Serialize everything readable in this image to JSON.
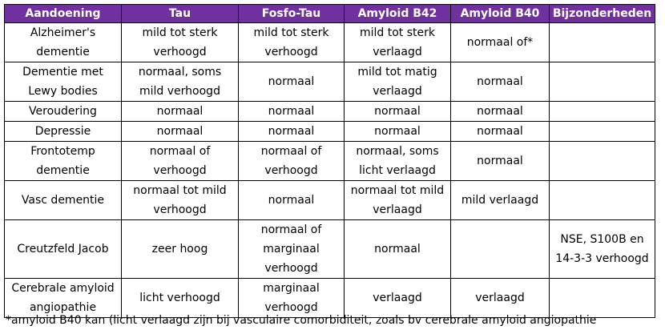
{
  "header": [
    "Aandoening",
    "Tau",
    "Fosfo-Tau",
    "Amyloid B42",
    "Amyloid B40",
    "Bijzonderheden"
  ],
  "rows": [
    [
      [
        "Alzheimer's",
        "dementie"
      ],
      [
        "mild tot sterk",
        "verhoogd"
      ],
      [
        "mild tot sterk",
        "verhoogd"
      ],
      [
        "mild tot sterk",
        "verlaagd"
      ],
      [
        "normaal of*"
      ],
      []
    ],
    [
      [
        "Dementie met",
        "Lewy bodies"
      ],
      [
        "normaal, soms",
        "mild verhoogd"
      ],
      [
        "normaal"
      ],
      [
        "mild tot matig",
        "verlaagd"
      ],
      [
        "normaal"
      ],
      []
    ],
    [
      [
        "Veroudering"
      ],
      [
        "normaal"
      ],
      [
        "normaal"
      ],
      [
        "normaal"
      ],
      [
        "normaal"
      ],
      []
    ],
    [
      [
        "Depressie"
      ],
      [
        "normaal"
      ],
      [
        "normaal"
      ],
      [
        "normaal"
      ],
      [
        "normaal"
      ],
      []
    ],
    [
      [
        "Frontotemp",
        "dementie"
      ],
      [
        "normaal of",
        "verhoogd"
      ],
      [
        "normaal of",
        "verhoogd"
      ],
      [
        "normaal, soms",
        "licht verlaagd"
      ],
      [
        "normaal"
      ],
      []
    ],
    [
      [
        "Vasc dementie"
      ],
      [
        "normaal tot mild",
        "verhoogd"
      ],
      [
        "normaal"
      ],
      [
        "normaal tot mild",
        "verlaagd"
      ],
      [
        "mild verlaagd"
      ],
      []
    ],
    [
      [
        "Creutzfeld Jacob"
      ],
      [
        "zeer hoog"
      ],
      [
        "normaal of",
        "marginaal",
        "verhoogd"
      ],
      [
        "normaal"
      ],
      [],
      [
        "NSE, S100B en",
        "14-3-3 verhoogd"
      ]
    ],
    [
      [
        "Cerebrale amyloid",
        "angiopathie"
      ],
      [
        "licht verhoogd"
      ],
      [
        "marginaal",
        "verhoogd"
      ],
      [
        "verlaagd"
      ],
      [
        "verlaagd"
      ],
      []
    ]
  ],
  "footnote": "*amyloid B40 kan (licht verlaagd zijn bij vasculaire comorbiditeit, zoals bv cerebrale amyloid angiopathie",
  "colors": {
    "header_bg": "#7030a0",
    "header_text": "#ffffff",
    "border": "#000000"
  }
}
